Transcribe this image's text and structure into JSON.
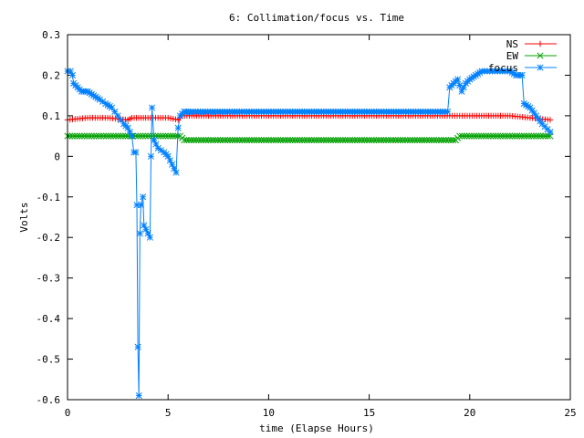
{
  "chart_data": {
    "type": "line",
    "title": "6: Collimation/focus vs. Time",
    "xlabel": "time (Elapse Hours)",
    "ylabel": "Volts",
    "xlim": [
      0,
      25
    ],
    "ylim": [
      -0.6,
      0.3
    ],
    "x_ticks": [
      "0",
      "5",
      "10",
      "15",
      "20",
      "25"
    ],
    "y_ticks": [
      "0.3",
      "0.2",
      "0.1",
      "0",
      "-0.1",
      "-0.2",
      "-0.3",
      "-0.4",
      "-0.5",
      "-0.6"
    ],
    "grid": false,
    "legend_position": "top-right",
    "series": [
      {
        "name": "NS",
        "color": "#ff0000",
        "marker": "plus",
        "points": [
          [
            0,
            0.09
          ],
          [
            1,
            0.095
          ],
          [
            2,
            0.095
          ],
          [
            3,
            0.09
          ],
          [
            3.2,
            0.095
          ],
          [
            4,
            0.095
          ],
          [
            5,
            0.095
          ],
          [
            5.5,
            0.09
          ],
          [
            5.7,
            0.1
          ],
          [
            10,
            0.1
          ],
          [
            15,
            0.1
          ],
          [
            19,
            0.1
          ],
          [
            20,
            0.1
          ],
          [
            22,
            0.1
          ],
          [
            23,
            0.095
          ],
          [
            24,
            0.09
          ]
        ]
      },
      {
        "name": "EW",
        "color": "#00a000",
        "marker": "cross",
        "points": [
          [
            0,
            0.05
          ],
          [
            3,
            0.05
          ],
          [
            3.5,
            0.05
          ],
          [
            4,
            0.05
          ],
          [
            5,
            0.05
          ],
          [
            5.6,
            0.05
          ],
          [
            5.8,
            0.04
          ],
          [
            10,
            0.04
          ],
          [
            15,
            0.04
          ],
          [
            19.3,
            0.04
          ],
          [
            19.5,
            0.05
          ],
          [
            22,
            0.05
          ],
          [
            24,
            0.05
          ]
        ]
      },
      {
        "name": "focus",
        "color": "#0080ff",
        "marker": "star",
        "points": [
          [
            0,
            0.21
          ],
          [
            0.15,
            0.21
          ],
          [
            0.25,
            0.2
          ],
          [
            0.3,
            0.18
          ],
          [
            0.5,
            0.17
          ],
          [
            0.7,
            0.16
          ],
          [
            1,
            0.16
          ],
          [
            1.3,
            0.15
          ],
          [
            1.6,
            0.14
          ],
          [
            1.9,
            0.13
          ],
          [
            2.2,
            0.12
          ],
          [
            2.5,
            0.1
          ],
          [
            2.8,
            0.08
          ],
          [
            3.0,
            0.07
          ],
          [
            3.2,
            0.05
          ],
          [
            3.3,
            0.01
          ],
          [
            3.4,
            0.01
          ],
          [
            3.45,
            -0.12
          ],
          [
            3.5,
            -0.47
          ],
          [
            3.55,
            -0.59
          ],
          [
            3.6,
            -0.19
          ],
          [
            3.65,
            -0.12
          ],
          [
            3.75,
            -0.1
          ],
          [
            3.8,
            -0.17
          ],
          [
            4.0,
            -0.19
          ],
          [
            4.1,
            -0.2
          ],
          [
            4.15,
            0.0
          ],
          [
            4.2,
            0.12
          ],
          [
            4.3,
            0.04
          ],
          [
            4.5,
            0.02
          ],
          [
            4.8,
            0.01
          ],
          [
            5.0,
            0.0
          ],
          [
            5.2,
            -0.02
          ],
          [
            5.4,
            -0.04
          ],
          [
            5.5,
            0.07
          ],
          [
            5.6,
            0.1
          ],
          [
            5.8,
            0.11
          ],
          [
            6,
            0.11
          ],
          [
            10,
            0.11
          ],
          [
            15,
            0.11
          ],
          [
            18.9,
            0.11
          ],
          [
            19.0,
            0.17
          ],
          [
            19.2,
            0.18
          ],
          [
            19.4,
            0.19
          ],
          [
            19.6,
            0.16
          ],
          [
            19.8,
            0.18
          ],
          [
            20.0,
            0.19
          ],
          [
            20.3,
            0.2
          ],
          [
            20.6,
            0.21
          ],
          [
            21,
            0.21
          ],
          [
            22,
            0.21
          ],
          [
            22.3,
            0.2
          ],
          [
            22.6,
            0.2
          ],
          [
            22.7,
            0.13
          ],
          [
            23,
            0.12
          ],
          [
            23.3,
            0.1
          ],
          [
            23.6,
            0.08
          ],
          [
            24,
            0.06
          ]
        ]
      }
    ]
  }
}
